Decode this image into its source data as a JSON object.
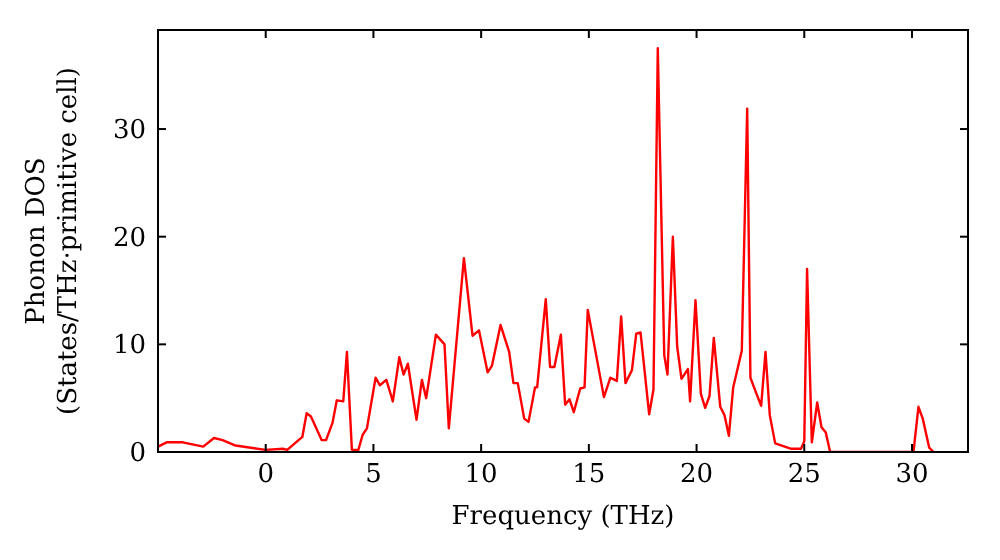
{
  "chart_data": {
    "type": "line",
    "xlabel": "Frequency (THz)",
    "ylabel": "Phonon DOS\n(States/THz·primitive cell)",
    "xlim": [
      -5,
      32.6
    ],
    "ylim": [
      0,
      39.2
    ],
    "xticks": [
      0,
      5,
      10,
      15,
      20,
      25,
      30
    ],
    "yticks": [
      0,
      10,
      20,
      30
    ],
    "grid": false,
    "marker": "none",
    "line_style": "solid",
    "series": [
      {
        "color": "#ff0000",
        "x": [
          -5,
          -4.6,
          -3.85,
          -2.9,
          -2.4,
          -2.0,
          -1.4,
          0,
          0.8,
          1.0,
          1.7,
          1.9,
          2.1,
          2.6,
          2.8,
          3.1,
          3.3,
          3.6,
          3.77,
          4.0,
          4.3,
          4.5,
          4.7,
          5.1,
          5.3,
          5.6,
          5.9,
          6.2,
          6.4,
          6.6,
          7.0,
          7.25,
          7.45,
          7.9,
          8.3,
          8.5,
          9.2,
          9.6,
          9.9,
          10.3,
          10.5,
          10.9,
          11.3,
          11.5,
          11.7,
          12.0,
          12.2,
          12.5,
          12.6,
          13.0,
          13.2,
          13.4,
          13.7,
          13.9,
          14.1,
          14.3,
          14.6,
          14.8,
          14.95,
          15.7,
          16.0,
          16.3,
          16.5,
          16.7,
          17.0,
          17.2,
          17.4,
          17.8,
          18.0,
          18.2,
          18.5,
          18.65,
          18.9,
          19.1,
          19.3,
          19.6,
          19.7,
          19.95,
          20.2,
          20.4,
          20.6,
          20.8,
          21.1,
          21.3,
          21.5,
          21.7,
          22.1,
          22.35,
          22.5,
          22.8,
          23.0,
          23.2,
          23.4,
          23.65,
          24.4,
          24.85,
          25.0,
          25.13,
          25.35,
          25.6,
          25.8,
          26.0,
          26.2,
          30.07,
          30.3,
          30.5,
          30.8,
          31.0
        ],
        "values": [
          0.5,
          0.9,
          0.9,
          0.5,
          1.3,
          1.1,
          0.6,
          0.2,
          0.3,
          0.2,
          1.4,
          3.6,
          3.3,
          1.1,
          1.1,
          2.7,
          4.8,
          4.7,
          9.3,
          0.2,
          0.2,
          1.6,
          2.2,
          6.9,
          6.2,
          6.7,
          4.7,
          8.8,
          7.2,
          8.2,
          3.0,
          6.7,
          5.0,
          10.9,
          10.0,
          2.2,
          18.0,
          10.8,
          11.3,
          7.4,
          8.0,
          11.8,
          9.3,
          6.4,
          6.4,
          3.1,
          2.8,
          6.0,
          6.0,
          14.2,
          7.9,
          7.9,
          10.9,
          4.4,
          4.9,
          3.7,
          5.9,
          6.0,
          13.2,
          5.1,
          6.9,
          6.6,
          12.6,
          6.4,
          7.6,
          11.0,
          11.1,
          3.5,
          5.8,
          37.5,
          9.0,
          7.2,
          20.0,
          9.8,
          6.8,
          7.7,
          4.7,
          14.1,
          5.4,
          4.1,
          5.2,
          10.6,
          4.2,
          3.4,
          1.5,
          6.0,
          9.4,
          31.9,
          6.9,
          5.3,
          4.3,
          9.3,
          3.4,
          0.8,
          0.3,
          0.3,
          1.0,
          17.0,
          0.9,
          4.6,
          2.3,
          1.8,
          0,
          0,
          4.2,
          3.1,
          0.4,
          0
        ]
      }
    ]
  }
}
